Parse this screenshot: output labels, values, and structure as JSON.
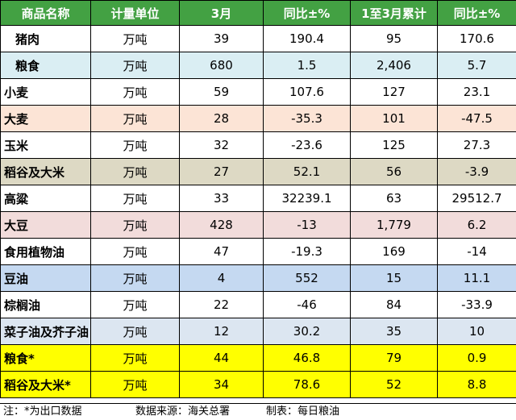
{
  "header": [
    "商品名称",
    "计量单位",
    "3月",
    "同比±%",
    "1至3月累计",
    "同比±%"
  ],
  "rows": [
    {
      "name": "猪肉",
      "unit": "万吨",
      "mar": "39",
      "yoy": "190.4",
      "cum": "95",
      "cum_yoy": "170.6",
      "bg": "#ffffff"
    },
    {
      "name": "粮食",
      "unit": "万吨",
      "mar": "680",
      "yoy": "1.5",
      "cum": "2,406",
      "cum_yoy": "5.7",
      "bg": "#daeef3"
    },
    {
      "name": "小麦",
      "unit": "万吨",
      "mar": "59",
      "yoy": "107.6",
      "cum": "127",
      "cum_yoy": "23.1",
      "bg": "#ffffff"
    },
    {
      "name": "大麦",
      "unit": "万吨",
      "mar": "28",
      "yoy": "-35.3",
      "cum": "101",
      "cum_yoy": "-47.5",
      "bg": "#fce4d6"
    },
    {
      "name": "玉米",
      "unit": "万吨",
      "mar": "32",
      "yoy": "-23.6",
      "cum": "125",
      "cum_yoy": "27.3",
      "bg": "#ffffff"
    },
    {
      "name": "稻谷及大米",
      "unit": "万吨",
      "mar": "27",
      "yoy": "52.1",
      "cum": "56",
      "cum_yoy": "-3.9",
      "bg": "#ddd9c4"
    },
    {
      "name": "高粱",
      "unit": "万吨",
      "mar": "33",
      "yoy": "32239.1",
      "cum": "63",
      "cum_yoy": "29512.7",
      "bg": "#ffffff"
    },
    {
      "name": "大豆",
      "unit": "万吨",
      "mar": "428",
      "yoy": "-13",
      "cum": "1,779",
      "cum_yoy": "6.2",
      "bg": "#f2dcdb"
    },
    {
      "name": "食用植物油",
      "unit": "万吨",
      "mar": "47",
      "yoy": "-19.3",
      "cum": "169",
      "cum_yoy": "-14",
      "bg": "#ffffff"
    },
    {
      "name": "豆油",
      "unit": "万吨",
      "mar": "4",
      "yoy": "552",
      "cum": "15",
      "cum_yoy": "11.1",
      "bg": "#c5d9f1"
    },
    {
      "name": "棕榈油",
      "unit": "万吨",
      "mar": "22",
      "yoy": "-46",
      "cum": "84",
      "cum_yoy": "-33.9",
      "bg": "#ffffff"
    },
    {
      "name": "菜子油及芥子油",
      "unit": "万吨",
      "mar": "12",
      "yoy": "30.2",
      "cum": "35",
      "cum_yoy": "10",
      "bg": "#dce6f1"
    },
    {
      "name": "粮食*",
      "unit": "万吨",
      "mar": "44",
      "yoy": "46.8",
      "cum": "79",
      "cum_yoy": "0.9",
      "bg": "#ffff00"
    },
    {
      "name": "稻谷及大米*",
      "unit": "万吨",
      "mar": "34",
      "yoy": "78.6",
      "cum": "52",
      "cum_yoy": "8.8",
      "bg": "#ffff00"
    }
  ],
  "footer": {
    "note": "注：*为出口数据",
    "source": "数据来源：海关总署",
    "maker": "制表：每日粮油"
  }
}
